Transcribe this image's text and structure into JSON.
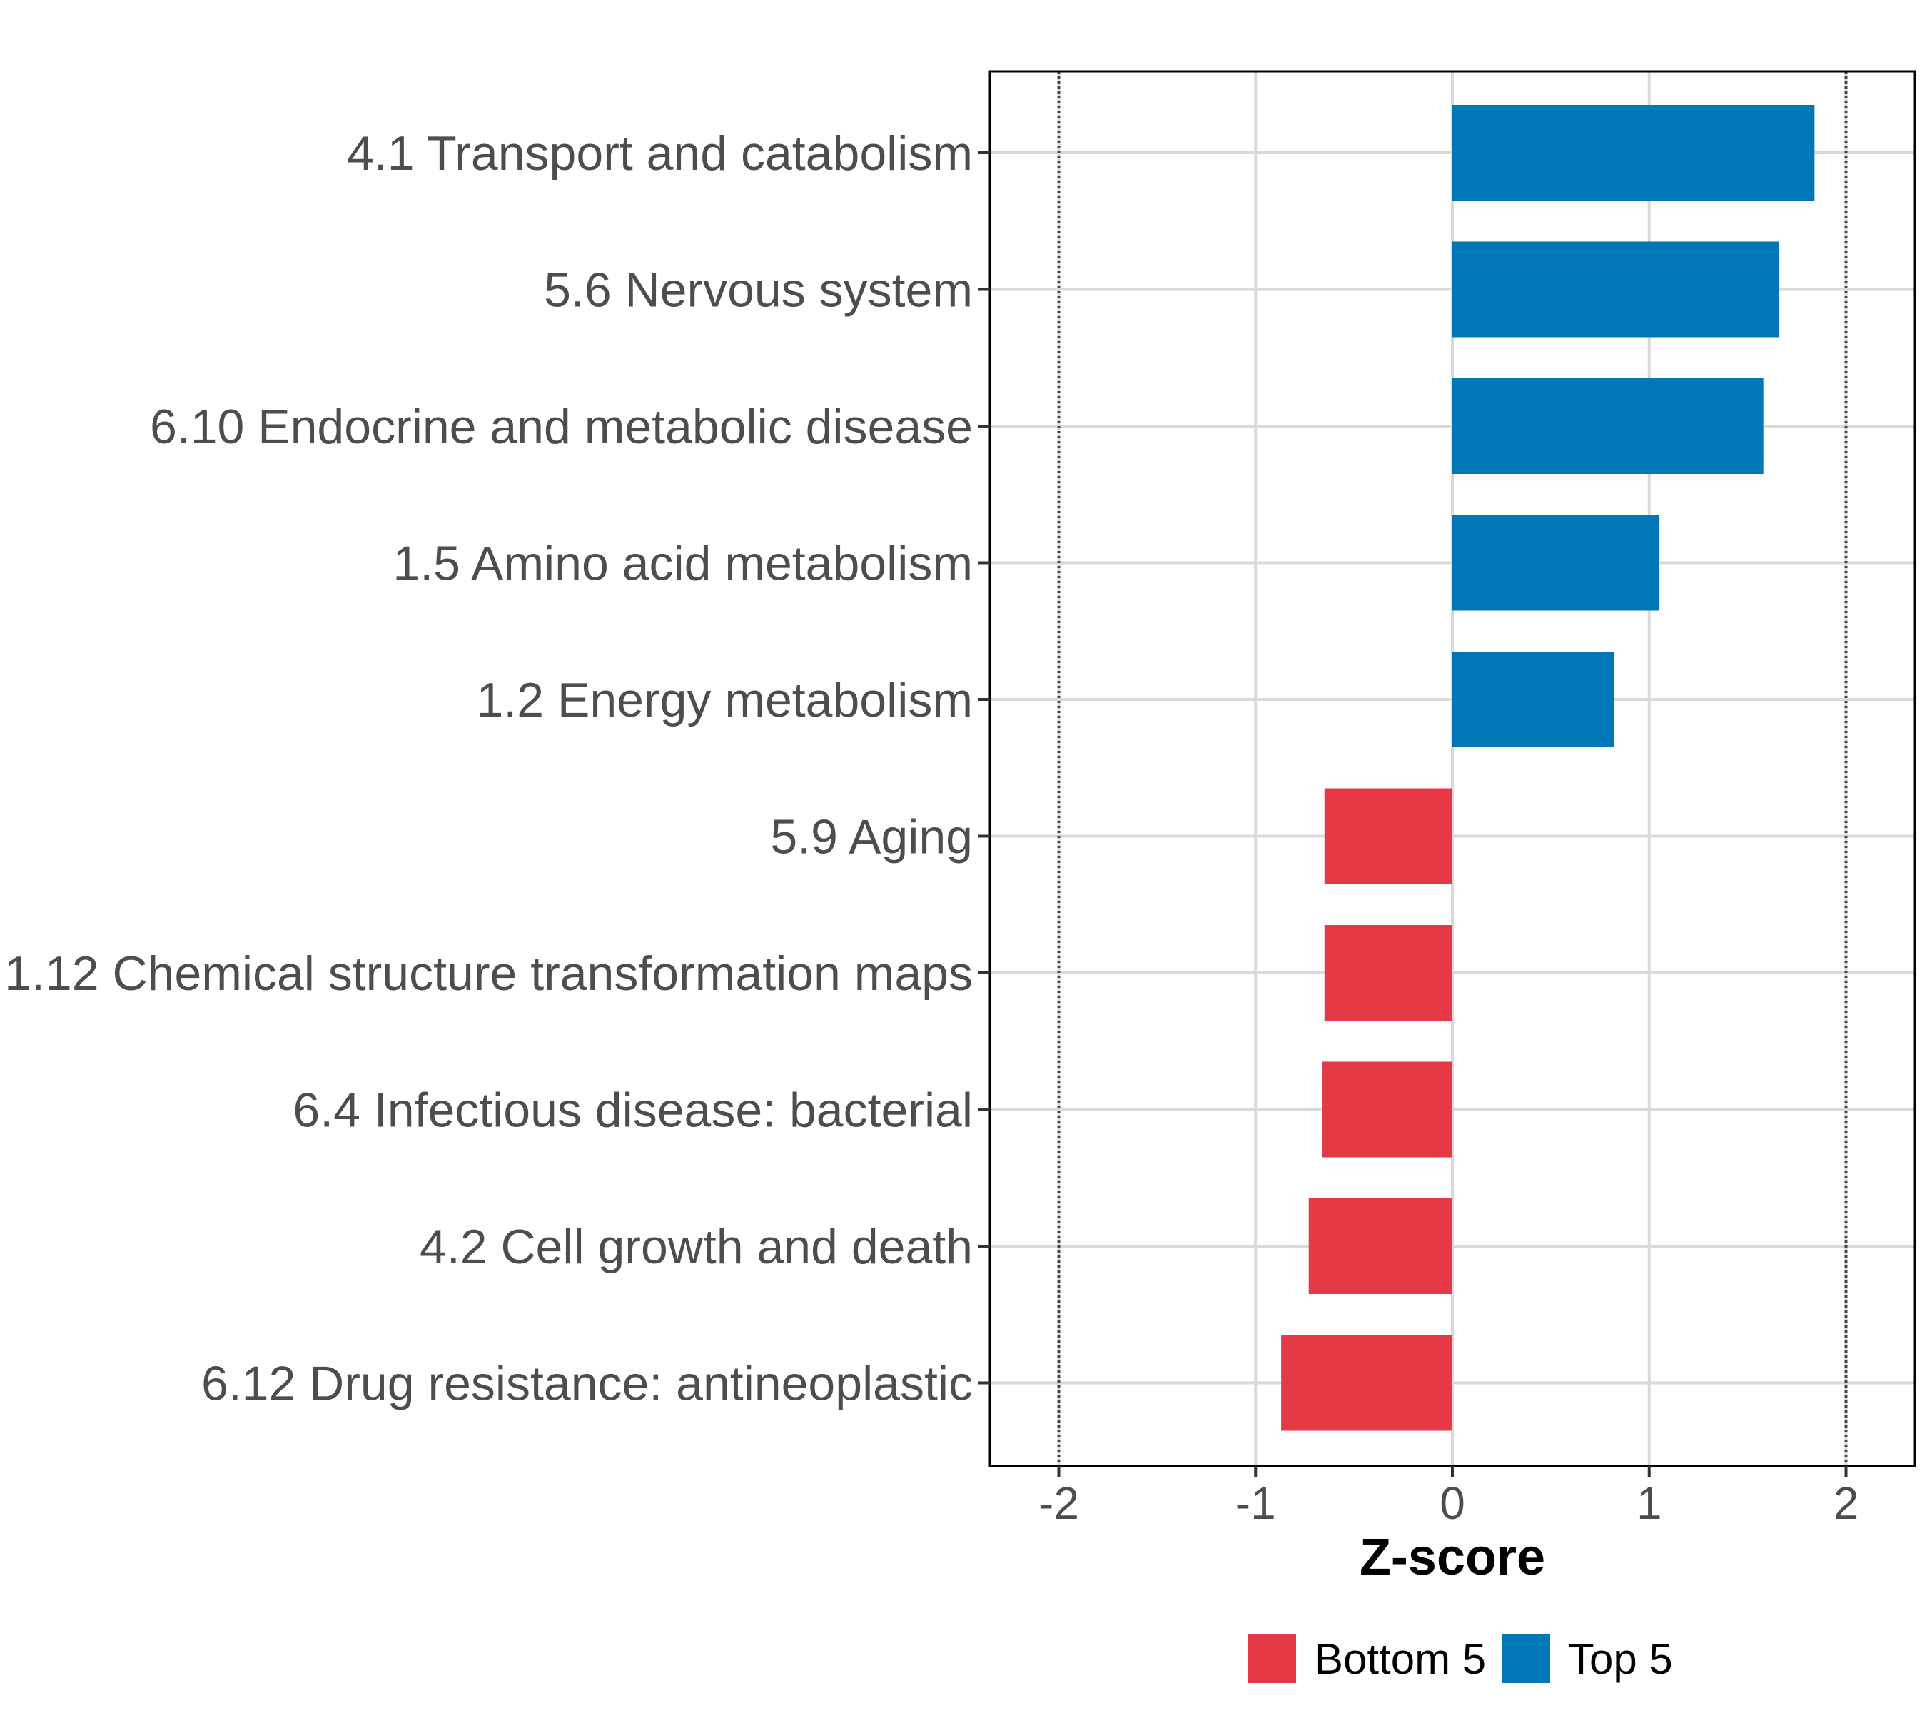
{
  "chart_data": {
    "type": "bar",
    "orientation": "horizontal",
    "categories": [
      "4.1 Transport and catabolism",
      "5.6 Nervous system",
      "6.10 Endocrine and metabolic disease",
      "1.5 Amino acid metabolism",
      "1.2 Energy metabolism",
      "5.9 Aging",
      "1.12 Chemical structure transformation maps",
      "6.4 Infectious disease: bacterial",
      "4.2 Cell growth and death",
      "6.12 Drug resistance: antineoplastic"
    ],
    "values": [
      1.84,
      1.66,
      1.58,
      1.05,
      0.82,
      -0.65,
      -0.65,
      -0.66,
      -0.73,
      -0.87
    ],
    "groups": [
      "Top 5",
      "Top 5",
      "Top 5",
      "Top 5",
      "Top 5",
      "Bottom 5",
      "Bottom 5",
      "Bottom 5",
      "Bottom 5",
      "Bottom 5"
    ],
    "xlabel": "Z-score",
    "ylabel": "",
    "xlim": [
      -2.35,
      2.35
    ],
    "xticks": [
      "-2",
      "-1",
      "0",
      "1",
      "2"
    ],
    "reference_lines": [
      -2,
      2
    ],
    "grid": true,
    "legend": {
      "position": "bottom",
      "entries": [
        {
          "label": "Bottom 5",
          "color": "#E63946"
        },
        {
          "label": "Top 5",
          "color": "#0077B6"
        }
      ]
    }
  }
}
